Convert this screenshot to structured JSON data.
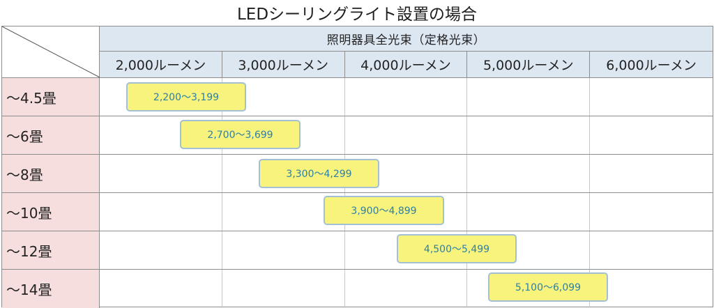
{
  "title": "LEDシーリングライト設置の場合",
  "table": {
    "group_header": "照明器具全光束（定格光束）",
    "columns": [
      "2,000ルーメン",
      "3,000ルーメン",
      "4,000ルーメン",
      "5,000ルーメン",
      "6,000ルーメン"
    ],
    "rows": [
      {
        "label": "～4.5畳",
        "range": "2,200～3,199"
      },
      {
        "label": "～6畳",
        "range": "2,700～3,699"
      },
      {
        "label": "～8畳",
        "range": "3,300～4,299"
      },
      {
        "label": "～10畳",
        "range": "3,900～4,899"
      },
      {
        "label": "～12畳",
        "range": "4,500～5,499"
      },
      {
        "label": "～14畳",
        "range": "5,100～6,099"
      }
    ]
  },
  "colors": {
    "header_bg": "#dde7f2",
    "row_label_bg": "#f5dedd",
    "range_fill": "#f7f37c",
    "range_border": "#a3bfd3",
    "range_text": "#2e7fa6"
  }
}
